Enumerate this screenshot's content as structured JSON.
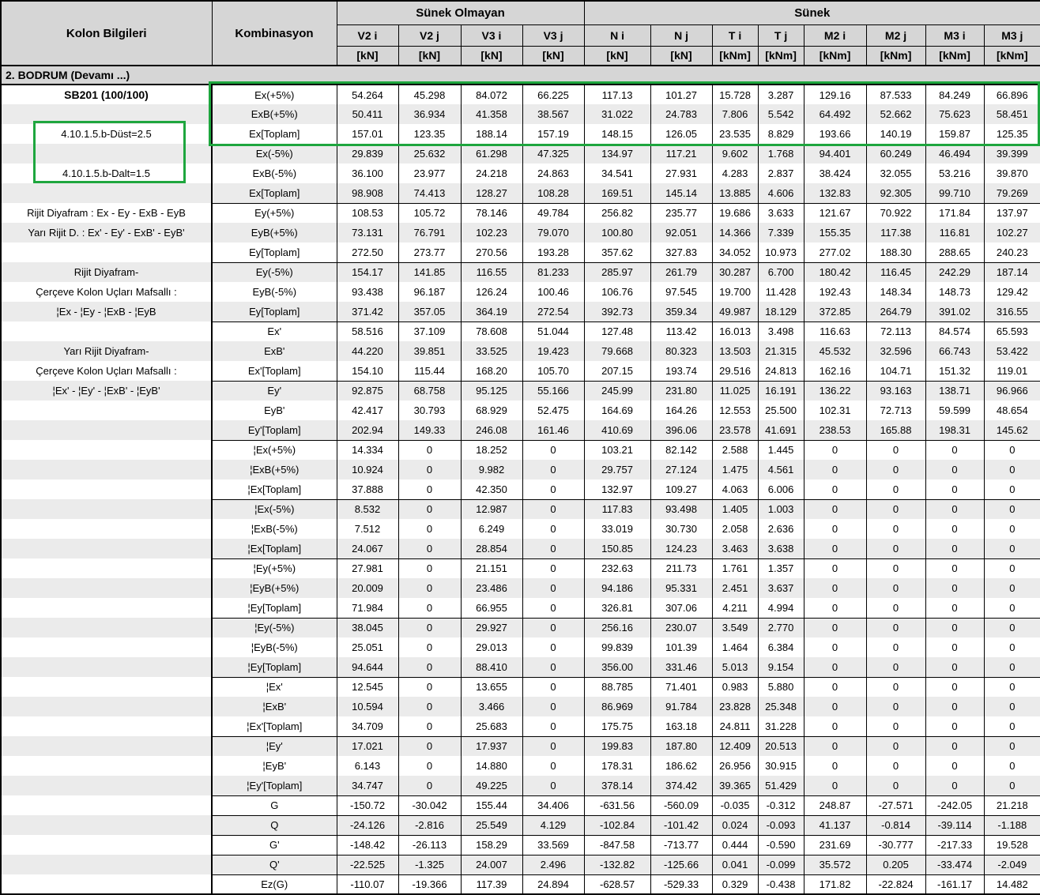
{
  "colors": {
    "header_bg": "#d6d6d6",
    "stripe_bg": "#ebebeb",
    "highlight_green": "#1ea63e",
    "border": "#000000"
  },
  "header": {
    "kolon_bilgileri": "Kolon Bilgileri",
    "kombinasyon": "Kombinasyon",
    "groups": [
      {
        "label": "Sünek Olmayan",
        "span": 4
      },
      {
        "label": "Sünek",
        "span": 8
      }
    ],
    "columns": [
      {
        "name": "V2 i",
        "unit": "[kN]"
      },
      {
        "name": "V2 j",
        "unit": "[kN]"
      },
      {
        "name": "V3 i",
        "unit": "[kN]"
      },
      {
        "name": "V3 j",
        "unit": "[kN]"
      },
      {
        "name": "N i",
        "unit": "[kN]"
      },
      {
        "name": "N j",
        "unit": "[kN]"
      },
      {
        "name": "T i",
        "unit": "[kNm]"
      },
      {
        "name": "T j",
        "unit": "[kNm]"
      },
      {
        "name": "M2 i",
        "unit": "[kNm]"
      },
      {
        "name": "M2 j",
        "unit": "[kNm]"
      },
      {
        "name": "M3 i",
        "unit": "[kNm]"
      },
      {
        "name": "M3 j",
        "unit": "[kNm]"
      }
    ]
  },
  "section_title": "2. BODRUM   (Devamı ...)",
  "left_labels": [
    {
      "row": 0,
      "text": "SB201 (100/100)",
      "bold": true
    },
    {
      "row": 2,
      "text": "4.10.1.5.b-Düst=2.5"
    },
    {
      "row": 4,
      "text": "4.10.1.5.b-Dalt=1.5"
    },
    {
      "row": 6,
      "text": "Rijit Diyafram : Ex - Ey - ExB - EyB"
    },
    {
      "row": 7,
      "text": "Yarı Rijit D. : Ex' - Ey' - ExB' - EyB'"
    },
    {
      "row": 9,
      "text": "Rijit Diyafram-"
    },
    {
      "row": 10,
      "text": "Çerçeve Kolon Uçları Mafsallı :"
    },
    {
      "row": 11,
      "text": "¦Ex - ¦Ey - ¦ExB - ¦EyB"
    },
    {
      "row": 13,
      "text": "Yarı Rijit Diyafram-"
    },
    {
      "row": 14,
      "text": "Çerçeve Kolon Uçları Mafsallı :"
    },
    {
      "row": 15,
      "text": "¦Ex' - ¦Ey' - ¦ExB' - ¦EyB'"
    }
  ],
  "rows": [
    {
      "combo": "Ex(+5%)",
      "values": [
        "54.264",
        "45.298",
        "84.072",
        "66.225",
        "117.13",
        "101.27",
        "15.728",
        "3.287",
        "129.16",
        "87.533",
        "84.249",
        "66.896"
      ],
      "sep": false
    },
    {
      "combo": "ExB(+5%)",
      "values": [
        "50.411",
        "36.934",
        "41.358",
        "38.567",
        "31.022",
        "24.783",
        "7.806",
        "5.542",
        "64.492",
        "52.662",
        "75.623",
        "58.451"
      ],
      "sep": false
    },
    {
      "combo": "Ex[Toplam]",
      "values": [
        "157.01",
        "123.35",
        "188.14",
        "157.19",
        "148.15",
        "126.05",
        "23.535",
        "8.829",
        "193.66",
        "140.19",
        "159.87",
        "125.35"
      ],
      "sep": true
    },
    {
      "combo": "Ex(-5%)",
      "values": [
        "29.839",
        "25.632",
        "61.298",
        "47.325",
        "134.97",
        "117.21",
        "9.602",
        "1.768",
        "94.401",
        "60.249",
        "46.494",
        "39.399"
      ],
      "sep": false
    },
    {
      "combo": "ExB(-5%)",
      "values": [
        "36.100",
        "23.977",
        "24.218",
        "24.863",
        "34.541",
        "27.931",
        "4.283",
        "2.837",
        "38.424",
        "32.055",
        "53.216",
        "39.870"
      ],
      "sep": false
    },
    {
      "combo": "Ex[Toplam]",
      "values": [
        "98.908",
        "74.413",
        "128.27",
        "108.28",
        "169.51",
        "145.14",
        "13.885",
        "4.606",
        "132.83",
        "92.305",
        "99.710",
        "79.269"
      ],
      "sep": true
    },
    {
      "combo": "Ey(+5%)",
      "values": [
        "108.53",
        "105.72",
        "78.146",
        "49.784",
        "256.82",
        "235.77",
        "19.686",
        "3.633",
        "121.67",
        "70.922",
        "171.84",
        "137.97"
      ],
      "sep": false
    },
    {
      "combo": "EyB(+5%)",
      "values": [
        "73.131",
        "76.791",
        "102.23",
        "79.070",
        "100.80",
        "92.051",
        "14.366",
        "7.339",
        "155.35",
        "117.38",
        "116.81",
        "102.27"
      ],
      "sep": false
    },
    {
      "combo": "Ey[Toplam]",
      "values": [
        "272.50",
        "273.77",
        "270.56",
        "193.28",
        "357.62",
        "327.83",
        "34.052",
        "10.973",
        "277.02",
        "188.30",
        "288.65",
        "240.23"
      ],
      "sep": true
    },
    {
      "combo": "Ey(-5%)",
      "values": [
        "154.17",
        "141.85",
        "116.55",
        "81.233",
        "285.97",
        "261.79",
        "30.287",
        "6.700",
        "180.42",
        "116.45",
        "242.29",
        "187.14"
      ],
      "sep": false
    },
    {
      "combo": "EyB(-5%)",
      "values": [
        "93.438",
        "96.187",
        "126.24",
        "100.46",
        "106.76",
        "97.545",
        "19.700",
        "11.428",
        "192.43",
        "148.34",
        "148.73",
        "129.42"
      ],
      "sep": false
    },
    {
      "combo": "Ey[Toplam]",
      "values": [
        "371.42",
        "357.05",
        "364.19",
        "272.54",
        "392.73",
        "359.34",
        "49.987",
        "18.129",
        "372.85",
        "264.79",
        "391.02",
        "316.55"
      ],
      "sep": true
    },
    {
      "combo": "Ex'",
      "values": [
        "58.516",
        "37.109",
        "78.608",
        "51.044",
        "127.48",
        "113.42",
        "16.013",
        "3.498",
        "116.63",
        "72.113",
        "84.574",
        "65.593"
      ],
      "sep": false
    },
    {
      "combo": "ExB'",
      "values": [
        "44.220",
        "39.851",
        "33.525",
        "19.423",
        "79.668",
        "80.323",
        "13.503",
        "21.315",
        "45.532",
        "32.596",
        "66.743",
        "53.422"
      ],
      "sep": false
    },
    {
      "combo": "Ex'[Toplam]",
      "values": [
        "154.10",
        "115.44",
        "168.20",
        "105.70",
        "207.15",
        "193.74",
        "29.516",
        "24.813",
        "162.16",
        "104.71",
        "151.32",
        "119.01"
      ],
      "sep": true
    },
    {
      "combo": "Ey'",
      "values": [
        "92.875",
        "68.758",
        "95.125",
        "55.166",
        "245.99",
        "231.80",
        "11.025",
        "16.191",
        "136.22",
        "93.163",
        "138.71",
        "96.966"
      ],
      "sep": false
    },
    {
      "combo": "EyB'",
      "values": [
        "42.417",
        "30.793",
        "68.929",
        "52.475",
        "164.69",
        "164.26",
        "12.553",
        "25.500",
        "102.31",
        "72.713",
        "59.599",
        "48.654"
      ],
      "sep": false
    },
    {
      "combo": "Ey'[Toplam]",
      "values": [
        "202.94",
        "149.33",
        "246.08",
        "161.46",
        "410.69",
        "396.06",
        "23.578",
        "41.691",
        "238.53",
        "165.88",
        "198.31",
        "145.62"
      ],
      "sep": true
    },
    {
      "combo": "¦Ex(+5%)",
      "values": [
        "14.334",
        "0",
        "18.252",
        "0",
        "103.21",
        "82.142",
        "2.588",
        "1.445",
        "0",
        "0",
        "0",
        "0"
      ],
      "sep": false
    },
    {
      "combo": "¦ExB(+5%)",
      "values": [
        "10.924",
        "0",
        "9.982",
        "0",
        "29.757",
        "27.124",
        "1.475",
        "4.561",
        "0",
        "0",
        "0",
        "0"
      ],
      "sep": false
    },
    {
      "combo": "¦Ex[Toplam]",
      "values": [
        "37.888",
        "0",
        "42.350",
        "0",
        "132.97",
        "109.27",
        "4.063",
        "6.006",
        "0",
        "0",
        "0",
        "0"
      ],
      "sep": true
    },
    {
      "combo": "¦Ex(-5%)",
      "values": [
        "8.532",
        "0",
        "12.987",
        "0",
        "117.83",
        "93.498",
        "1.405",
        "1.003",
        "0",
        "0",
        "0",
        "0"
      ],
      "sep": false
    },
    {
      "combo": "¦ExB(-5%)",
      "values": [
        "7.512",
        "0",
        "6.249",
        "0",
        "33.019",
        "30.730",
        "2.058",
        "2.636",
        "0",
        "0",
        "0",
        "0"
      ],
      "sep": false
    },
    {
      "combo": "¦Ex[Toplam]",
      "values": [
        "24.067",
        "0",
        "28.854",
        "0",
        "150.85",
        "124.23",
        "3.463",
        "3.638",
        "0",
        "0",
        "0",
        "0"
      ],
      "sep": true
    },
    {
      "combo": "¦Ey(+5%)",
      "values": [
        "27.981",
        "0",
        "21.151",
        "0",
        "232.63",
        "211.73",
        "1.761",
        "1.357",
        "0",
        "0",
        "0",
        "0"
      ],
      "sep": false
    },
    {
      "combo": "¦EyB(+5%)",
      "values": [
        "20.009",
        "0",
        "23.486",
        "0",
        "94.186",
        "95.331",
        "2.451",
        "3.637",
        "0",
        "0",
        "0",
        "0"
      ],
      "sep": false
    },
    {
      "combo": "¦Ey[Toplam]",
      "values": [
        "71.984",
        "0",
        "66.955",
        "0",
        "326.81",
        "307.06",
        "4.211",
        "4.994",
        "0",
        "0",
        "0",
        "0"
      ],
      "sep": true
    },
    {
      "combo": "¦Ey(-5%)",
      "values": [
        "38.045",
        "0",
        "29.927",
        "0",
        "256.16",
        "230.07",
        "3.549",
        "2.770",
        "0",
        "0",
        "0",
        "0"
      ],
      "sep": false
    },
    {
      "combo": "¦EyB(-5%)",
      "values": [
        "25.051",
        "0",
        "29.013",
        "0",
        "99.839",
        "101.39",
        "1.464",
        "6.384",
        "0",
        "0",
        "0",
        "0"
      ],
      "sep": false
    },
    {
      "combo": "¦Ey[Toplam]",
      "values": [
        "94.644",
        "0",
        "88.410",
        "0",
        "356.00",
        "331.46",
        "5.013",
        "9.154",
        "0",
        "0",
        "0",
        "0"
      ],
      "sep": true
    },
    {
      "combo": "¦Ex'",
      "values": [
        "12.545",
        "0",
        "13.655",
        "0",
        "88.785",
        "71.401",
        "0.983",
        "5.880",
        "0",
        "0",
        "0",
        "0"
      ],
      "sep": false
    },
    {
      "combo": "¦ExB'",
      "values": [
        "10.594",
        "0",
        "3.466",
        "0",
        "86.969",
        "91.784",
        "23.828",
        "25.348",
        "0",
        "0",
        "0",
        "0"
      ],
      "sep": false
    },
    {
      "combo": "¦Ex'[Toplam]",
      "values": [
        "34.709",
        "0",
        "25.683",
        "0",
        "175.75",
        "163.18",
        "24.811",
        "31.228",
        "0",
        "0",
        "0",
        "0"
      ],
      "sep": true
    },
    {
      "combo": "¦Ey'",
      "values": [
        "17.021",
        "0",
        "17.937",
        "0",
        "199.83",
        "187.80",
        "12.409",
        "20.513",
        "0",
        "0",
        "0",
        "0"
      ],
      "sep": false
    },
    {
      "combo": "¦EyB'",
      "values": [
        "6.143",
        "0",
        "14.880",
        "0",
        "178.31",
        "186.62",
        "26.956",
        "30.915",
        "0",
        "0",
        "0",
        "0"
      ],
      "sep": false
    },
    {
      "combo": "¦Ey'[Toplam]",
      "values": [
        "34.747",
        "0",
        "49.225",
        "0",
        "378.14",
        "374.42",
        "39.365",
        "51.429",
        "0",
        "0",
        "0",
        "0"
      ],
      "sep": true
    },
    {
      "combo": "G",
      "values": [
        "-150.72",
        "-30.042",
        "155.44",
        "34.406",
        "-631.56",
        "-560.09",
        "-0.035",
        "-0.312",
        "248.87",
        "-27.571",
        "-242.05",
        "21.218"
      ],
      "sep": true
    },
    {
      "combo": "Q",
      "values": [
        "-24.126",
        "-2.816",
        "25.549",
        "4.129",
        "-102.84",
        "-101.42",
        "0.024",
        "-0.093",
        "41.137",
        "-0.814",
        "-39.114",
        "-1.188"
      ],
      "sep": true
    },
    {
      "combo": "G'",
      "values": [
        "-148.42",
        "-26.113",
        "158.29",
        "33.569",
        "-847.58",
        "-713.77",
        "0.444",
        "-0.590",
        "231.69",
        "-30.777",
        "-217.33",
        "19.528"
      ],
      "sep": true
    },
    {
      "combo": "Q'",
      "values": [
        "-22.525",
        "-1.325",
        "24.007",
        "2.496",
        "-132.82",
        "-125.66",
        "0.041",
        "-0.099",
        "35.572",
        "0.205",
        "-33.474",
        "-2.049"
      ],
      "sep": true
    },
    {
      "combo": "Ez(G)",
      "values": [
        "-110.07",
        "-19.366",
        "117.39",
        "24.894",
        "-628.57",
        "-529.33",
        "0.329",
        "-0.438",
        "171.82",
        "-22.824",
        "-161.17",
        "14.482"
      ],
      "sep": false
    }
  ]
}
